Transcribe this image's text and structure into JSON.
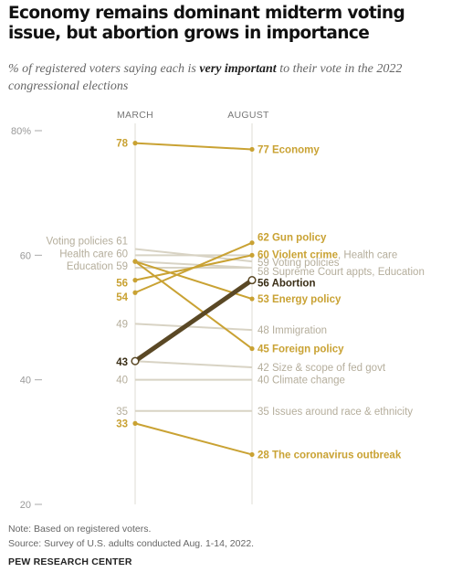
{
  "header": {
    "title": "Economy remains dominant midterm voting issue, but abortion grows in importance",
    "subtitle_pre": "% of registered voters saying each is ",
    "subtitle_em": "very important",
    "subtitle_post": " to their vote in the 2022 congressional elections"
  },
  "footer": {
    "note": "Note: Based on registered voters.",
    "source": "Source: Survey of U.S. adults conducted Aug. 1-14, 2022.",
    "organization": "PEW RESEARCH CENTER"
  },
  "colors": {
    "highlight": "#c9a233",
    "muted": "#d8d3c4",
    "muted_text": "#b5ae9c",
    "abortion": "#5a4825",
    "axis": "#999999"
  },
  "chart_data": {
    "type": "slope",
    "x": [
      "MARCH",
      "AUGUST"
    ],
    "ylim": [
      20,
      80
    ],
    "y_ticks": [
      20,
      40,
      60,
      80
    ],
    "y_tick_labels": [
      "20",
      "40",
      "60",
      "80%"
    ],
    "grid": false,
    "series": [
      {
        "name": "Economy",
        "values": [
          78,
          77
        ],
        "style": "highlight",
        "left_label": "78",
        "right_label": "77",
        "right_name": "Economy"
      },
      {
        "name": "Gun policy",
        "values": [
          54,
          62
        ],
        "style": "highlight",
        "left_label": "54",
        "right_label": "62",
        "right_name": "Gun policy"
      },
      {
        "name": "Violent crime",
        "values": [
          56,
          60
        ],
        "style": "highlight",
        "left_label": "56",
        "right_label": "60",
        "right_name": "Violent crime",
        "right_extra": ", Health care"
      },
      {
        "name": "Health care",
        "values": [
          60,
          60
        ],
        "style": "muted",
        "left_label": "Health care  60"
      },
      {
        "name": "Voting policies",
        "values": [
          61,
          59
        ],
        "style": "muted",
        "left_label": "Voting policies  61",
        "right_label": "59",
        "right_name": "Voting policies"
      },
      {
        "name": "Supreme Court appts",
        "values": [
          58,
          58
        ],
        "style": "muted",
        "right_label": "58",
        "right_name": "Supreme Court appts, Education"
      },
      {
        "name": "Education",
        "values": [
          59,
          58
        ],
        "style": "muted",
        "left_label": "Education  59"
      },
      {
        "name": "Abortion",
        "values": [
          43,
          56
        ],
        "style": "abortion",
        "left_label": "43",
        "right_label": "56",
        "right_name": "Abortion"
      },
      {
        "name": "Energy policy",
        "values": [
          59,
          53
        ],
        "style": "highlight",
        "right_label": "53",
        "right_name": "Energy policy"
      },
      {
        "name": "Immigration",
        "values": [
          49,
          48
        ],
        "style": "muted",
        "left_label": "49",
        "right_label": "48",
        "right_name": "Immigration"
      },
      {
        "name": "Foreign policy",
        "values": [
          59,
          45
        ],
        "style": "highlight",
        "right_label": "45",
        "right_name": "Foreign policy"
      },
      {
        "name": "Size & scope of fed govt",
        "values": [
          43,
          42
        ],
        "style": "muted",
        "right_label": "42",
        "right_name": "Size & scope of fed govt"
      },
      {
        "name": "Climate change",
        "values": [
          40,
          40
        ],
        "style": "muted",
        "left_label": "40",
        "right_label": "40",
        "right_name": "Climate change"
      },
      {
        "name": "Issues around race & ethnicity",
        "values": [
          35,
          35
        ],
        "style": "muted",
        "left_label": "35",
        "right_label": "35",
        "right_name": "Issues around race & ethnicity"
      },
      {
        "name": "The coronavirus outbreak",
        "values": [
          33,
          28
        ],
        "style": "highlight",
        "left_label": "33",
        "right_label": "28",
        "right_name": "The coronavirus outbreak"
      }
    ]
  }
}
